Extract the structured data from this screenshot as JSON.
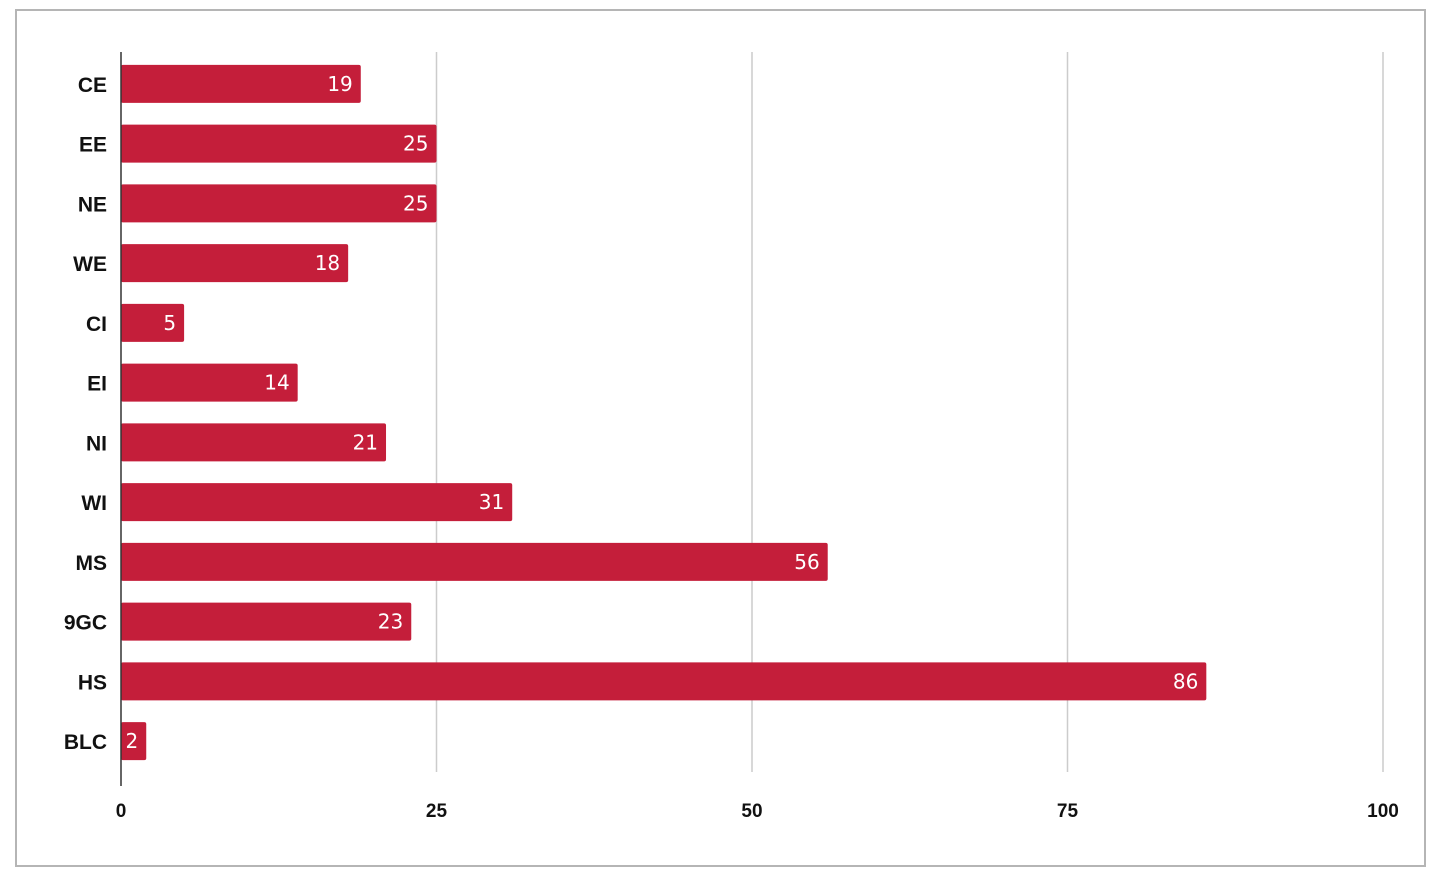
{
  "chart_data": {
    "type": "bar",
    "orientation": "horizontal",
    "categories": [
      "CE",
      "EE",
      "NE",
      "WE",
      "CI",
      "EI",
      "NI",
      "WI",
      "MS",
      "9GC",
      "HS",
      "BLC"
    ],
    "values": [
      19,
      25,
      25,
      18,
      5,
      14,
      21,
      31,
      56,
      23,
      86,
      2
    ],
    "data_labels": [
      "19",
      "25",
      "25",
      "18",
      "5",
      "14",
      "21",
      "31",
      "56",
      "23",
      "86",
      "2"
    ],
    "xlim": [
      0,
      100
    ],
    "xticks": [
      0,
      25,
      50,
      75,
      100
    ],
    "xtick_labels": [
      "0",
      "25",
      "50",
      "75",
      "100"
    ],
    "title": "",
    "xlabel": "",
    "ylabel": "",
    "grid": "vertical",
    "legend": "none",
    "bar_color": "#c41e3a",
    "grid_color": "#cccccc",
    "axis_color": "#333333"
  }
}
